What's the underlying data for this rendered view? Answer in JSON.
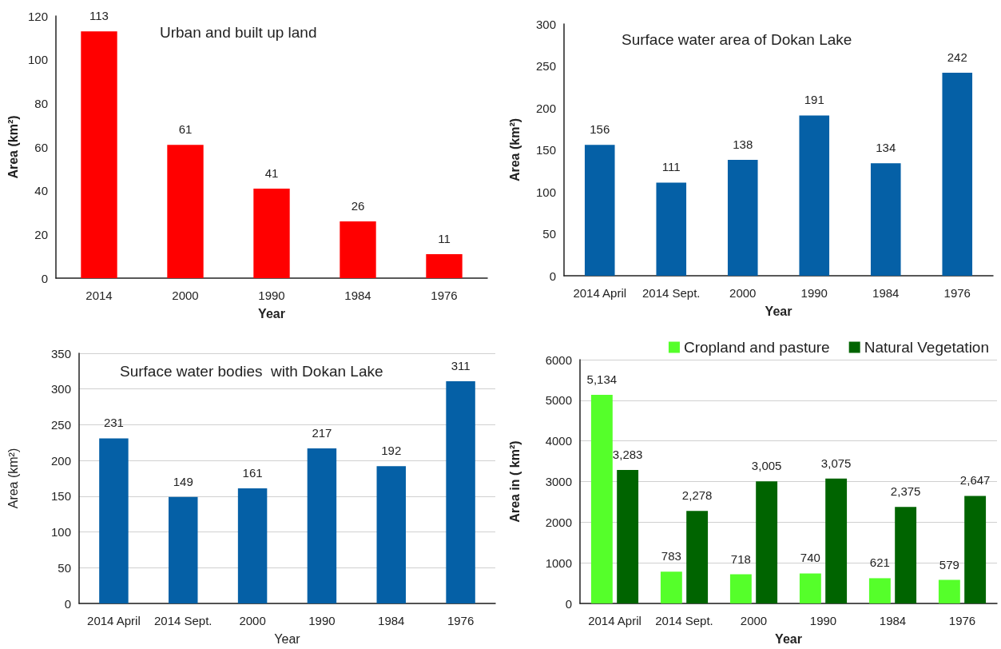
{
  "chart_data": [
    {
      "type": "bar",
      "title": "Urban and built up land",
      "xlabel": "Year",
      "ylabel": "Area (km²)",
      "categories": [
        "2014",
        "2000",
        "1990",
        "1984",
        "1976"
      ],
      "values": [
        113,
        61,
        41,
        26,
        11
      ],
      "color": "#ff0000",
      "ylim": [
        0,
        120
      ],
      "yticks": [
        0,
        20,
        40,
        60,
        80,
        100,
        120
      ],
      "grid": false,
      "data_labels": true
    },
    {
      "type": "bar",
      "title": "Surface water area of Dokan Lake",
      "xlabel": "Year",
      "ylabel": "Area (km²)",
      "categories": [
        "2014 April",
        "2014 Sept.",
        "2000",
        "1990",
        "1984",
        "1976"
      ],
      "values": [
        156,
        111,
        138,
        191,
        134,
        242
      ],
      "color": "#0560a6",
      "ylim": [
        0,
        300
      ],
      "yticks": [
        0,
        50,
        100,
        150,
        200,
        250,
        300
      ],
      "grid": false,
      "data_labels": true
    },
    {
      "type": "bar",
      "title": "Surface water bodies  with Dokan Lake",
      "xlabel": "Year",
      "ylabel": "Area (km²)",
      "categories": [
        "2014 April",
        "2014 Sept.",
        "2000",
        "1990",
        "1984",
        "1976"
      ],
      "values": [
        231,
        149,
        161,
        217,
        192,
        311
      ],
      "color": "#0560a6",
      "ylim": [
        0,
        350
      ],
      "yticks": [
        0,
        50,
        100,
        150,
        200,
        250,
        300,
        350
      ],
      "grid": "y",
      "data_labels": true
    },
    {
      "type": "bar",
      "xlabel": "Year",
      "ylabel": "Area in ( km²)",
      "categories": [
        "2014 April",
        "2014 Sept.",
        "2000",
        "1990",
        "1984",
        "1976"
      ],
      "series": [
        {
          "name": "Cropland and pasture",
          "color": "#55ff2a",
          "values": [
            5134,
            783,
            718,
            740,
            621,
            579
          ],
          "value_labels": [
            "5,134",
            "783",
            "718",
            "740",
            "621",
            "579"
          ]
        },
        {
          "name": "Natural Vegetation",
          "color": "#006400",
          "values": [
            3283,
            2278,
            3005,
            3075,
            2375,
            2647
          ],
          "value_labels": [
            "3,283",
            "2,278",
            "3,005",
            "3,075",
            "2,375",
            "2,647"
          ]
        }
      ],
      "ylim": [
        0,
        6000
      ],
      "yticks": [
        0,
        1000,
        2000,
        3000,
        4000,
        5000,
        6000
      ],
      "grid": "y",
      "legend": "top right"
    }
  ]
}
